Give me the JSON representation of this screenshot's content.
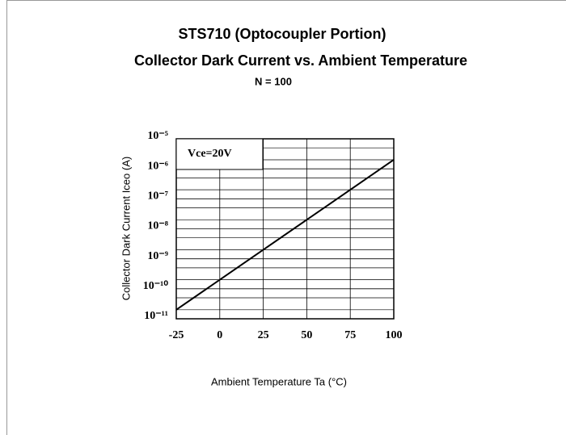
{
  "chart_data": {
    "type": "line",
    "title": "STS710 (Optocoupler Portion)",
    "subtitle": "Collector Dark Current vs. Ambient Temperature",
    "note": "N = 100",
    "annotation": "Vce=20V",
    "x_label": "Ambient Temperature Ta (°C)",
    "y_label": "Collector Dark Current Iceo (A)",
    "x": [
      -25,
      100
    ],
    "series": [
      {
        "name": "Iceo",
        "color": "#000000",
        "values": [
          2e-11,
          2e-06
        ]
      }
    ],
    "xlim": [
      -25,
      100
    ],
    "xticks": [
      -25,
      0,
      25,
      50,
      75,
      100
    ],
    "ylim": [
      1e-11,
      1e-05
    ],
    "log_y": true,
    "yticks": [
      {
        "value": 1e-11,
        "label": "10⁻¹¹"
      },
      {
        "value": 1e-10,
        "label": "10⁻¹⁰"
      },
      {
        "value": 1e-09,
        "label": "10⁻⁹"
      },
      {
        "value": 1e-08,
        "label": "10⁻⁸"
      },
      {
        "value": 1e-07,
        "label": "10⁻⁷"
      },
      {
        "value": 1e-06,
        "label": "10⁻⁶"
      },
      {
        "value": 1e-05,
        "label": "10⁻⁵"
      }
    ],
    "grid": true
  }
}
